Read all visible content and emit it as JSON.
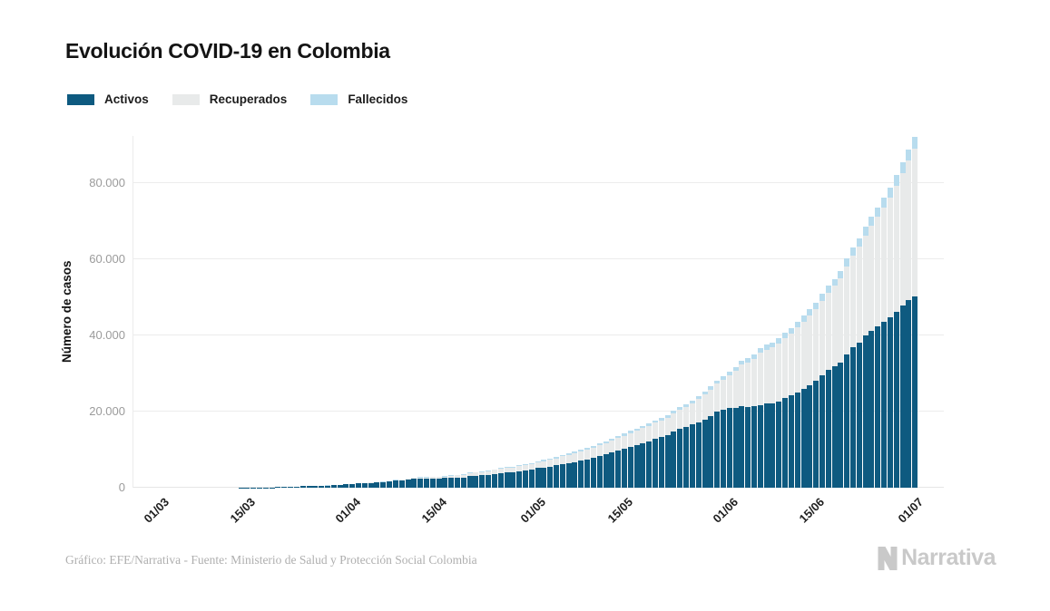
{
  "page": {
    "title": "Evolución COVID-19 en Colombia"
  },
  "legend": {
    "items": [
      {
        "label": "Activos",
        "color": "#0e5a80"
      },
      {
        "label": "Recuperados",
        "color": "#e8eaea"
      },
      {
        "label": "Fallecidos",
        "color": "#b8dcee"
      }
    ]
  },
  "y_axis": {
    "label": "Número de casos",
    "ticks": [
      "0",
      "20.000",
      "40.000",
      "60.000",
      "80.000"
    ],
    "tick_values": [
      0,
      20000,
      40000,
      60000,
      80000
    ]
  },
  "x_axis": {
    "ticks": [
      {
        "label": "01/03",
        "day": 0
      },
      {
        "label": "15/03",
        "day": 14
      },
      {
        "label": "01/04",
        "day": 31
      },
      {
        "label": "15/04",
        "day": 45
      },
      {
        "label": "01/05",
        "day": 61
      },
      {
        "label": "15/05",
        "day": 75
      },
      {
        "label": "01/06",
        "day": 92
      },
      {
        "label": "15/06",
        "day": 106
      },
      {
        "label": "01/07",
        "day": 122
      }
    ]
  },
  "footer": {
    "credit": "Gráfico: EFE/Narrativa - Fuente: Ministerio de Salud y Protección Social Colombia"
  },
  "logo": {
    "text": "Narrativa"
  },
  "chart_data": {
    "type": "bar",
    "stacked": true,
    "title": "Evolución COVID-19 en Colombia",
    "xlabel": "",
    "ylabel": "Número de casos",
    "ylim": [
      0,
      92500
    ],
    "grid": "horizontal",
    "legend_position": "top-left",
    "dates": [
      "01/03",
      "02/03",
      "03/03",
      "04/03",
      "05/03",
      "06/03",
      "07/03",
      "08/03",
      "09/03",
      "10/03",
      "11/03",
      "12/03",
      "13/03",
      "14/03",
      "15/03",
      "16/03",
      "17/03",
      "18/03",
      "19/03",
      "20/03",
      "21/03",
      "22/03",
      "23/03",
      "24/03",
      "25/03",
      "26/03",
      "27/03",
      "28/03",
      "29/03",
      "30/03",
      "31/03",
      "01/04",
      "02/04",
      "03/04",
      "04/04",
      "05/04",
      "06/04",
      "07/04",
      "08/04",
      "09/04",
      "10/04",
      "11/04",
      "12/04",
      "13/04",
      "14/04",
      "15/04",
      "16/04",
      "17/04",
      "18/04",
      "19/04",
      "20/04",
      "21/04",
      "22/04",
      "23/04",
      "24/04",
      "25/04",
      "26/04",
      "27/04",
      "28/04",
      "29/04",
      "30/04",
      "01/05",
      "02/05",
      "03/05",
      "04/05",
      "05/05",
      "06/05",
      "07/05",
      "08/05",
      "09/05",
      "10/05",
      "11/05",
      "12/05",
      "13/05",
      "14/05",
      "15/05",
      "16/05",
      "17/05",
      "18/05",
      "19/05",
      "20/05",
      "21/05",
      "22/05",
      "23/05",
      "24/05",
      "25/05",
      "26/05",
      "27/05",
      "28/05",
      "29/05",
      "30/05",
      "31/05",
      "01/06",
      "02/06",
      "03/06",
      "04/06",
      "05/06",
      "06/06",
      "07/06",
      "08/06",
      "09/06",
      "10/06",
      "11/06",
      "12/06",
      "13/06",
      "14/06",
      "15/06",
      "16/06",
      "17/06",
      "18/06",
      "19/06",
      "20/06",
      "21/06",
      "22/06",
      "23/06",
      "24/06",
      "25/06",
      "26/06",
      "27/06",
      "28/06",
      "29/06",
      "30/06",
      "01/07"
    ],
    "series": [
      {
        "name": "Activos",
        "color": "#0e5a80",
        "values": [
          0,
          0,
          0,
          0,
          0,
          1,
          1,
          1,
          3,
          3,
          9,
          13,
          15,
          21,
          33,
          53,
          64,
          90,
          99,
          141,
          190,
          223,
          268,
          369,
          458,
          477,
          523,
          592,
          682,
          771,
          859,
          1009,
          1087,
          1187,
          1289,
          1362,
          1433,
          1618,
          1877,
          1980,
          2196,
          2395,
          2397,
          2421,
          2471,
          2498,
          2522,
          2539,
          2652,
          2744,
          2984,
          3123,
          3280,
          3419,
          3653,
          3842,
          4002,
          4134,
          4412,
          4589,
          4775,
          5141,
          5297,
          5606,
          5889,
          6222,
          6414,
          6749,
          7199,
          7481,
          7895,
          8309,
          8808,
          9288,
          9727,
          10210,
          10790,
          11249,
          11800,
          12272,
          12801,
          13247,
          13874,
          14754,
          15432,
          15966,
          16716,
          17190,
          17879,
          18922,
          19958,
          20570,
          21100,
          21065,
          21383,
          21309,
          21543,
          21816,
          22249,
          22173,
          22692,
          23557,
          24218,
          25094,
          25947,
          26966,
          28151,
          29626,
          30887,
          31936,
          33006,
          35084,
          37020,
          38193,
          39942,
          41363,
          42339,
          43523,
          44748,
          46250,
          47857,
          49364,
          50308
        ]
      },
      {
        "name": "Recuperados",
        "color": "#e8eaea",
        "values": [
          0,
          0,
          0,
          0,
          0,
          0,
          0,
          0,
          0,
          0,
          0,
          0,
          1,
          1,
          1,
          1,
          1,
          3,
          3,
          4,
          5,
          6,
          6,
          6,
          8,
          8,
          10,
          10,
          10,
          15,
          31,
          39,
          55,
          55,
          85,
          88,
          100,
          112,
          123,
          174,
          197,
          214,
          270,
          319,
          344,
          354,
          452,
          550,
          634,
          711,
          804,
          830,
          870,
          927,
          1003,
          1067,
          1133,
          1210,
          1268,
          1340,
          1439,
          1551,
          1664,
          1722,
          1845,
          2013,
          2148,
          2300,
          2424,
          2569,
          2705,
          2825,
          2971,
          3133,
          3358,
          3460,
          3587,
          3751,
          3903,
          4050,
          4256,
          4431,
          4575,
          4718,
          5016,
          5265,
          5511,
          6111,
          6665,
          6913,
          7388,
          7875,
          8424,
          9759,
          10926,
          11667,
          12432,
          13638,
          14111,
          14709,
          15236,
          15790,
          16427,
          17100,
          17720,
          18300,
          18928,
          19568,
          20366,
          21120,
          22090,
          23088,
          24130,
          25227,
          26400,
          27600,
          28930,
          30200,
          31600,
          33120,
          34820,
          36635,
          38965
        ]
      },
      {
        "name": "Fallecidos",
        "color": "#b8dcee",
        "values": [
          0,
          0,
          0,
          0,
          0,
          0,
          0,
          0,
          0,
          0,
          0,
          0,
          0,
          0,
          0,
          0,
          0,
          0,
          0,
          0,
          1,
          2,
          3,
          3,
          4,
          6,
          6,
          6,
          10,
          12,
          16,
          17,
          19,
          25,
          32,
          35,
          46,
          50,
          54,
          69,
          80,
          100,
          109,
          112,
          118,
          127,
          131,
          144,
          153,
          166,
          189,
          196,
          206,
          215,
          225,
          233,
          244,
          253,
          269,
          278,
          293,
          314,
          324,
          340,
          358,
          378,
          397,
          407,
          428,
          445,
          463,
          479,
          493,
          509,
          525,
          546,
          562,
          574,
          592,
          613,
          630,
          652,
          682,
          705,
          727,
          750,
          776,
          803,
          822,
          853,
          890,
          939,
          969,
          1009,
          1045,
          1087,
          1145,
          1181,
          1212,
          1267,
          1308,
          1372,
          1433,
          1488,
          1545,
          1592,
          1667,
          1745,
          1810,
          1875,
          1950,
          2045,
          2126,
          2213,
          2310,
          2404,
          2491,
          2583,
          2686,
          2788,
          2900,
          3000,
          3106
        ]
      }
    ]
  }
}
